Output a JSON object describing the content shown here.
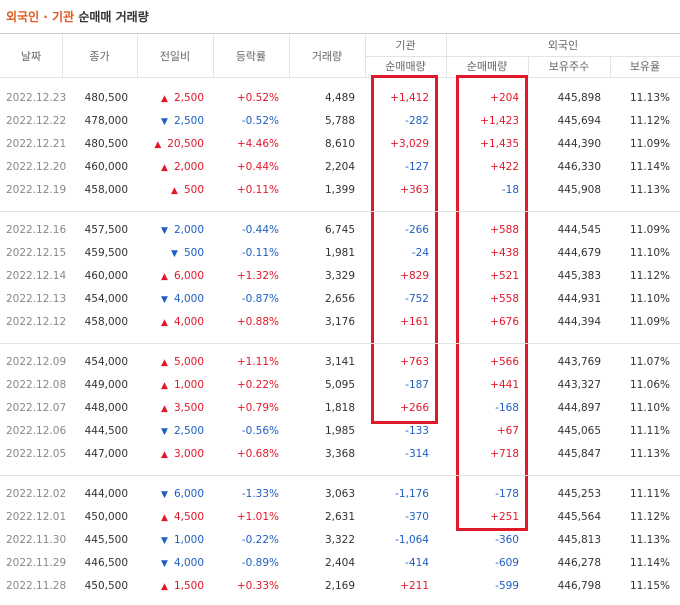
{
  "header": {
    "title_highlight": "외국인 · 기관",
    "title": "순매매 거래량"
  },
  "table": {
    "columns": [
      "날짜",
      "종가",
      "전일비",
      "등락률",
      "거래량"
    ],
    "groups": [
      {
        "label": "기관",
        "columns": [
          "순매매량"
        ]
      },
      {
        "label": "외국인",
        "columns": [
          "순매매량",
          "보유주수",
          "보유율"
        ]
      }
    ],
    "row_groups": [
      [
        [
          "2022.12.23",
          "480,500",
          "▲",
          "2,500",
          "+0.52%",
          "4,489",
          "+1,412",
          "+204",
          "445,898",
          "11.13%"
        ],
        [
          "2022.12.22",
          "478,000",
          "▼",
          "2,500",
          "-0.52%",
          "5,788",
          "-282",
          "+1,423",
          "445,694",
          "11.12%"
        ],
        [
          "2022.12.21",
          "480,500",
          "▲",
          "20,500",
          "+4.46%",
          "8,610",
          "+3,029",
          "+1,435",
          "444,390",
          "11.09%"
        ],
        [
          "2022.12.20",
          "460,000",
          "▲",
          "2,000",
          "+0.44%",
          "2,204",
          "-127",
          "+422",
          "446,330",
          "11.14%"
        ],
        [
          "2022.12.19",
          "458,000",
          "▲",
          "500",
          "+0.11%",
          "1,399",
          "+363",
          "-18",
          "445,908",
          "11.13%"
        ]
      ],
      [
        [
          "2022.12.16",
          "457,500",
          "▼",
          "2,000",
          "-0.44%",
          "6,745",
          "-266",
          "+588",
          "444,545",
          "11.09%"
        ],
        [
          "2022.12.15",
          "459,500",
          "▼",
          "500",
          "-0.11%",
          "1,981",
          "-24",
          "+438",
          "444,679",
          "11.10%"
        ],
        [
          "2022.12.14",
          "460,000",
          "▲",
          "6,000",
          "+1.32%",
          "3,329",
          "+829",
          "+521",
          "445,383",
          "11.12%"
        ],
        [
          "2022.12.13",
          "454,000",
          "▼",
          "4,000",
          "-0.87%",
          "2,656",
          "-752",
          "+558",
          "444,931",
          "11.10%"
        ],
        [
          "2022.12.12",
          "458,000",
          "▲",
          "4,000",
          "+0.88%",
          "3,176",
          "+161",
          "+676",
          "444,394",
          "11.09%"
        ]
      ],
      [
        [
          "2022.12.09",
          "454,000",
          "▲",
          "5,000",
          "+1.11%",
          "3,141",
          "+763",
          "+566",
          "443,769",
          "11.07%"
        ],
        [
          "2022.12.08",
          "449,000",
          "▲",
          "1,000",
          "+0.22%",
          "5,095",
          "-187",
          "+441",
          "443,327",
          "11.06%"
        ],
        [
          "2022.12.07",
          "448,000",
          "▲",
          "3,500",
          "+0.79%",
          "1,818",
          "+266",
          "-168",
          "444,897",
          "11.10%"
        ],
        [
          "2022.12.06",
          "444,500",
          "▼",
          "2,500",
          "-0.56%",
          "1,985",
          "-133",
          "+67",
          "445,065",
          "11.11%"
        ],
        [
          "2022.12.05",
          "447,000",
          "▲",
          "3,000",
          "+0.68%",
          "3,368",
          "-314",
          "+718",
          "445,847",
          "11.13%"
        ]
      ],
      [
        [
          "2022.12.02",
          "444,000",
          "▼",
          "6,000",
          "-1.33%",
          "3,063",
          "-1,176",
          "-178",
          "445,253",
          "11.11%"
        ],
        [
          "2022.12.01",
          "450,000",
          "▲",
          "4,500",
          "+1.01%",
          "2,631",
          "-370",
          "+251",
          "445,564",
          "11.12%"
        ],
        [
          "2022.11.30",
          "445,500",
          "▼",
          "1,000",
          "-0.22%",
          "3,322",
          "-1,064",
          "-360",
          "445,813",
          "11.13%"
        ],
        [
          "2022.11.29",
          "446,500",
          "▼",
          "4,000",
          "-0.89%",
          "2,404",
          "-414",
          "-609",
          "446,278",
          "11.14%"
        ],
        [
          "2022.11.28",
          "450,500",
          "▲",
          "1,500",
          "+0.33%",
          "2,169",
          "+211",
          "-599",
          "446,798",
          "11.15%"
        ]
      ]
    ]
  }
}
